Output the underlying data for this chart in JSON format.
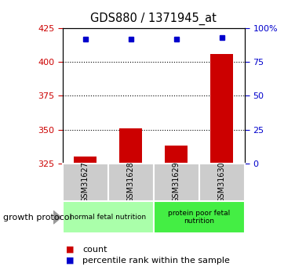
{
  "title": "GDS880 / 1371945_at",
  "samples": [
    "GSM31627",
    "GSM31628",
    "GSM31629",
    "GSM31630"
  ],
  "count_values": [
    330,
    351,
    338,
    406
  ],
  "percentile_values": [
    92,
    92,
    92,
    93
  ],
  "ylim_left": [
    325,
    425
  ],
  "ylim_right": [
    0,
    100
  ],
  "yticks_left": [
    325,
    350,
    375,
    400,
    425
  ],
  "yticks_right": [
    0,
    25,
    50,
    75,
    100
  ],
  "bar_color": "#cc0000",
  "dot_color": "#0000cc",
  "groups": [
    {
      "label": "normal fetal nutrition",
      "indices": [
        0,
        1
      ],
      "color": "#aaffaa"
    },
    {
      "label": "protein poor fetal\nnutrition",
      "indices": [
        2,
        3
      ],
      "color": "#44ee44"
    }
  ],
  "group_label": "growth protocol",
  "legend_count": "count",
  "legend_pct": "percentile rank within the sample",
  "tick_color_left": "#cc0000",
  "tick_color_right": "#0000cc",
  "sample_box_color": "#cccccc",
  "bar_width": 0.5,
  "dot_size": 5,
  "hlines": [
    350,
    375,
    400
  ],
  "pct_display_value": 92,
  "pct_display_value_last": 93
}
